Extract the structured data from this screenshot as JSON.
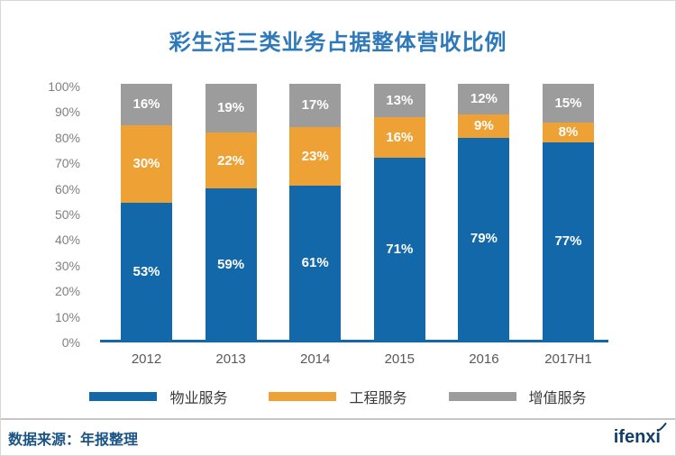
{
  "title": "彩生活三类业务占据整体营收比例",
  "footer": {
    "source_label": "数据来源：年报整理",
    "logo": "ifenxi"
  },
  "colors": {
    "title_blue": "#2e79ba",
    "axis_line_blue": "#1268a8",
    "y_tick_gray": "#7f7f7f",
    "x_label_gray": "#595959",
    "bar_label_white": "#ffffff",
    "footer_text_blue": "#1a5485",
    "logo_blue": "#123f6b"
  },
  "chart_data": {
    "type": "bar",
    "stacked": true,
    "title": "彩生活三类业务占据整体营收比例",
    "categories": [
      "2012",
      "2013",
      "2014",
      "2015",
      "2016",
      "2017H1"
    ],
    "series": [
      {
        "name": "物业服务",
        "color": "#1268a8",
        "values": [
          53,
          59,
          61,
          71,
          79,
          77
        ]
      },
      {
        "name": "工程服务",
        "color": "#eea236",
        "values": [
          30,
          22,
          23,
          16,
          9,
          8
        ]
      },
      {
        "name": "增值服务",
        "color": "#9c9c9c",
        "values": [
          16,
          19,
          17,
          13,
          12,
          15
        ]
      }
    ],
    "value_suffix": "%",
    "ylim": [
      0,
      100
    ],
    "yticks": [
      "0%",
      "10%",
      "20%",
      "30%",
      "40%",
      "50%",
      "60%",
      "70%",
      "80%",
      "90%",
      "100%"
    ],
    "grid": false,
    "legend_position": "bottom"
  }
}
